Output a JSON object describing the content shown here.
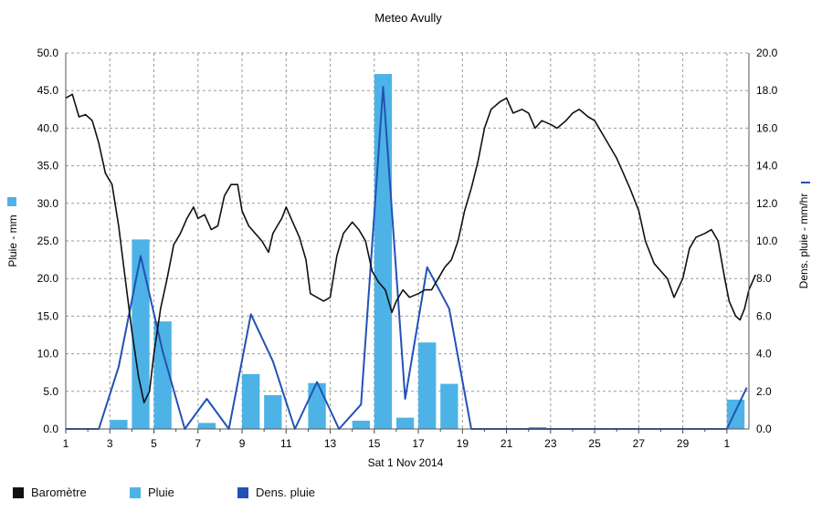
{
  "chart_data": {
    "type": "bar",
    "title": "Meteo  Avully",
    "xlabel": "Sat 1 Nov 2014",
    "x_ticks": [
      "1",
      "3",
      "5",
      "7",
      "9",
      "11",
      "13",
      "15",
      "17",
      "19",
      "21",
      "23",
      "25",
      "27",
      "29",
      "1"
    ],
    "x_range": [
      1,
      32
    ],
    "y_left": {
      "label": "Pluie - mm",
      "ylim": [
        0,
        50
      ],
      "ticks": [
        "0.0",
        "5.0",
        "10.0",
        "15.0",
        "20.0",
        "25.0",
        "30.0",
        "35.0",
        "40.0",
        "45.0",
        "50.0"
      ]
    },
    "y_right": {
      "label": "Dens. pluie - mm/hr",
      "ylim": [
        0,
        20
      ],
      "ticks": [
        "0.0",
        "2.0",
        "4.0",
        "6.0",
        "8.0",
        "10.0",
        "12.0",
        "14.0",
        "16.0",
        "18.0",
        "20.0"
      ]
    },
    "grid": true,
    "legend_position": "bottom-left",
    "series": [
      {
        "name": "Baromètre",
        "type": "line",
        "axis": "left",
        "color": "#111111",
        "points": [
          [
            1.0,
            44
          ],
          [
            1.3,
            44.5
          ],
          [
            1.6,
            41.5
          ],
          [
            1.9,
            41.8
          ],
          [
            2.2,
            41
          ],
          [
            2.5,
            38
          ],
          [
            2.8,
            34
          ],
          [
            3.1,
            32.5
          ],
          [
            3.4,
            27
          ],
          [
            3.7,
            20
          ],
          [
            4.0,
            13
          ],
          [
            4.3,
            7
          ],
          [
            4.55,
            3.5
          ],
          [
            4.8,
            5
          ],
          [
            5.0,
            10
          ],
          [
            5.3,
            16
          ],
          [
            5.6,
            20
          ],
          [
            5.9,
            24.5
          ],
          [
            6.2,
            26
          ],
          [
            6.5,
            28
          ],
          [
            6.8,
            29.5
          ],
          [
            7.0,
            28
          ],
          [
            7.3,
            28.5
          ],
          [
            7.6,
            26.5
          ],
          [
            7.9,
            27
          ],
          [
            8.2,
            31
          ],
          [
            8.5,
            32.5
          ],
          [
            8.8,
            32.5
          ],
          [
            9.0,
            29
          ],
          [
            9.3,
            27
          ],
          [
            9.6,
            26
          ],
          [
            9.9,
            25
          ],
          [
            10.2,
            23.5
          ],
          [
            10.4,
            26
          ],
          [
            10.6,
            27
          ],
          [
            10.8,
            28
          ],
          [
            11.0,
            29.5
          ],
          [
            11.3,
            27.5
          ],
          [
            11.6,
            25.5
          ],
          [
            11.9,
            22.5
          ],
          [
            12.1,
            18
          ],
          [
            12.4,
            17.5
          ],
          [
            12.7,
            17
          ],
          [
            13.0,
            17.5
          ],
          [
            13.3,
            23
          ],
          [
            13.6,
            26
          ],
          [
            14.0,
            27.5
          ],
          [
            14.3,
            26.5
          ],
          [
            14.6,
            25
          ],
          [
            14.9,
            21
          ],
          [
            15.2,
            19.5
          ],
          [
            15.5,
            18.5
          ],
          [
            15.8,
            15.5
          ],
          [
            16.0,
            17
          ],
          [
            16.3,
            18.5
          ],
          [
            16.6,
            17.5
          ],
          [
            17.0,
            18
          ],
          [
            17.3,
            18.5
          ],
          [
            17.6,
            18.5
          ],
          [
            17.9,
            20
          ],
          [
            18.2,
            21.5
          ],
          [
            18.5,
            22.5
          ],
          [
            18.8,
            25
          ],
          [
            19.1,
            29
          ],
          [
            19.4,
            32
          ],
          [
            19.7,
            35.5
          ],
          [
            20.0,
            40
          ],
          [
            20.3,
            42.5
          ],
          [
            20.7,
            43.5
          ],
          [
            21.0,
            44
          ],
          [
            21.3,
            42
          ],
          [
            21.7,
            42.5
          ],
          [
            22.0,
            42
          ],
          [
            22.3,
            40
          ],
          [
            22.6,
            41
          ],
          [
            23.0,
            40.5
          ],
          [
            23.3,
            40
          ],
          [
            23.7,
            41
          ],
          [
            24.0,
            42
          ],
          [
            24.3,
            42.5
          ],
          [
            24.7,
            41.5
          ],
          [
            25.0,
            41
          ],
          [
            25.3,
            39.5
          ],
          [
            25.6,
            38
          ],
          [
            26.0,
            36
          ],
          [
            26.3,
            34
          ],
          [
            26.6,
            32
          ],
          [
            27.0,
            29
          ],
          [
            27.3,
            25
          ],
          [
            27.7,
            22
          ],
          [
            28.0,
            21
          ],
          [
            28.3,
            20
          ],
          [
            28.6,
            17.5
          ],
          [
            29.0,
            20
          ],
          [
            29.3,
            24
          ],
          [
            29.6,
            25.5
          ],
          [
            30.0,
            26
          ],
          [
            30.3,
            26.5
          ],
          [
            30.6,
            25
          ],
          [
            30.9,
            20
          ],
          [
            31.1,
            17
          ],
          [
            31.4,
            15
          ],
          [
            31.6,
            14.5
          ],
          [
            31.8,
            16
          ],
          [
            32.0,
            18.5
          ],
          [
            32.3,
            20.5
          ]
        ]
      },
      {
        "name": "Pluie",
        "type": "bar",
        "axis": "left",
        "color": "#4db3e6",
        "points": [
          [
            3.4,
            1.2
          ],
          [
            4.4,
            25.2
          ],
          [
            5.4,
            14.3
          ],
          [
            7.4,
            0.8
          ],
          [
            9.4,
            7.3
          ],
          [
            10.4,
            4.5
          ],
          [
            12.4,
            6.1
          ],
          [
            14.4,
            1.1
          ],
          [
            15.4,
            47.2
          ],
          [
            16.4,
            1.5
          ],
          [
            17.4,
            11.5
          ],
          [
            18.4,
            6.0
          ],
          [
            22.4,
            0.25
          ],
          [
            24.4,
            0.1
          ],
          [
            27.4,
            0.1
          ],
          [
            31.4,
            3.9
          ]
        ]
      },
      {
        "name": "Dens. pluie",
        "type": "line",
        "axis": "right",
        "color": "#2252b5",
        "points": [
          [
            1.0,
            0
          ],
          [
            2.5,
            0
          ],
          [
            3.4,
            3.3
          ],
          [
            4.4,
            9.2
          ],
          [
            5.4,
            4.1
          ],
          [
            6.4,
            0
          ],
          [
            7.4,
            1.6
          ],
          [
            8.4,
            0
          ],
          [
            9.4,
            6.1
          ],
          [
            10.4,
            3.6
          ],
          [
            11.4,
            0
          ],
          [
            12.4,
            2.5
          ],
          [
            13.4,
            0
          ],
          [
            14.4,
            1.3
          ],
          [
            15.4,
            18.2
          ],
          [
            16.4,
            1.6
          ],
          [
            17.4,
            8.6
          ],
          [
            18.4,
            6.4
          ],
          [
            19.4,
            0
          ],
          [
            22.4,
            0
          ],
          [
            26.0,
            0
          ],
          [
            30.0,
            0
          ],
          [
            31.0,
            0
          ],
          [
            31.9,
            2.2
          ]
        ]
      }
    ]
  }
}
